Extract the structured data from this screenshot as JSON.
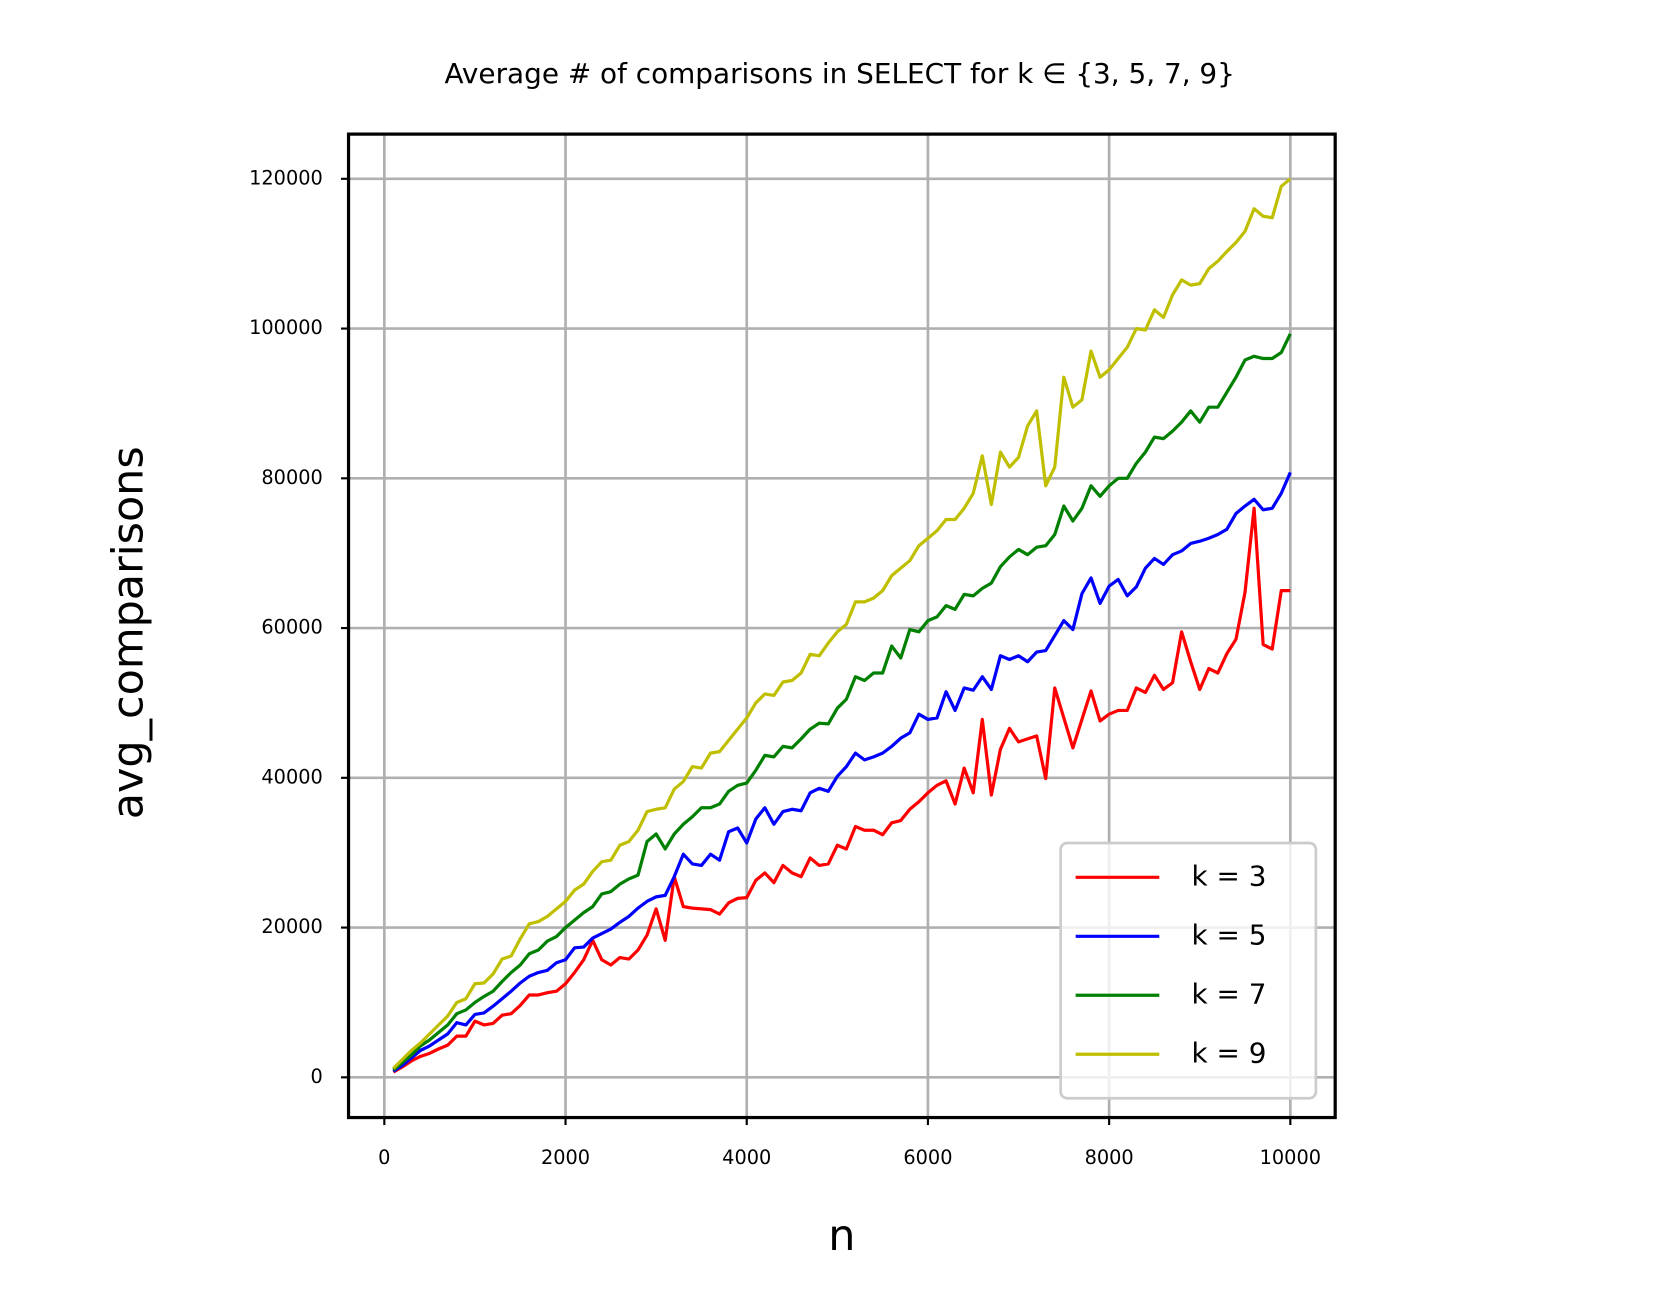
{
  "chart_data": {
    "type": "line",
    "title": "Average # of comparisons in SELECT for k ∈ {3, 5, 7, 9}",
    "x_label": "n",
    "y_label": "avg_comparisons",
    "x": [
      100,
      200,
      300,
      400,
      500,
      600,
      700,
      800,
      900,
      1000,
      1100,
      1200,
      1300,
      1400,
      1500,
      1600,
      1700,
      1800,
      1900,
      2000,
      2100,
      2200,
      2300,
      2400,
      2500,
      2600,
      2700,
      2800,
      2900,
      3000,
      3100,
      3200,
      3300,
      3400,
      3500,
      3600,
      3700,
      3800,
      3900,
      4000,
      4100,
      4200,
      4300,
      4400,
      4500,
      4600,
      4700,
      4800,
      4900,
      5000,
      5100,
      5200,
      5300,
      5400,
      5500,
      5600,
      5700,
      5800,
      5900,
      6000,
      6100,
      6200,
      6300,
      6400,
      6500,
      6600,
      6700,
      6800,
      6900,
      7000,
      7100,
      7200,
      7300,
      7400,
      7500,
      7600,
      7700,
      7800,
      7900,
      8000,
      8100,
      8200,
      8300,
      8400,
      8500,
      8600,
      8700,
      8800,
      8900,
      9000,
      9100,
      9200,
      9300,
      9400,
      9500,
      9600,
      9700,
      9800,
      9900,
      10000
    ],
    "series": [
      {
        "name": "k = 3",
        "color": "#ff0000",
        "values": [
          700,
          1400,
          2200,
          2800,
          3200,
          3800,
          4300,
          5500,
          5500,
          7500,
          7000,
          7200,
          8300,
          8500,
          9600,
          11000,
          11000,
          11300,
          11500,
          12500,
          14000,
          15700,
          18300,
          15700,
          15000,
          16000,
          15800,
          17000,
          19000,
          22500,
          18300,
          26800,
          22800,
          22600,
          22500,
          22400,
          21800,
          23300,
          23900,
          24000,
          26300,
          27300,
          26000,
          28300,
          27300,
          26800,
          29300,
          28300,
          28500,
          31000,
          30500,
          33500,
          33000,
          33000,
          32400,
          34000,
          34300,
          35800,
          36800,
          38000,
          39000,
          39600,
          36500,
          41300,
          38000,
          47800,
          37700,
          43800,
          46600,
          44800,
          45200,
          45600,
          39900,
          52000,
          48000,
          44000,
          47800,
          51600,
          47600,
          48500,
          49000,
          49000,
          52000,
          51400,
          53700,
          51800,
          52700,
          59500,
          55500,
          51800,
          54600,
          54000,
          56600,
          58500,
          64800,
          76000,
          57800,
          57200,
          65000,
          65000
        ]
      },
      {
        "name": "k = 5",
        "color": "#0000ff",
        "values": [
          800,
          1600,
          2600,
          3600,
          4200,
          5000,
          5800,
          7300,
          7000,
          8400,
          8600,
          9500,
          10500,
          11500,
          12600,
          13500,
          14000,
          14300,
          15300,
          15700,
          17300,
          17400,
          18600,
          19200,
          19800,
          20700,
          21500,
          22600,
          23500,
          24100,
          24300,
          26800,
          29800,
          28500,
          28300,
          29800,
          29000,
          32800,
          33300,
          31300,
          34500,
          36000,
          33800,
          35500,
          35800,
          35600,
          38000,
          38600,
          38200,
          40200,
          41500,
          43300,
          42400,
          42800,
          43300,
          44200,
          45300,
          46000,
          48500,
          47800,
          48000,
          51500,
          49000,
          52000,
          51700,
          53500,
          51800,
          56300,
          55800,
          56300,
          55500,
          56800,
          57000,
          59000,
          61000,
          59800,
          64600,
          66700,
          63300,
          65600,
          66500,
          64300,
          65500,
          68000,
          69300,
          68500,
          69800,
          70300,
          71300,
          71600,
          72000,
          72500,
          73200,
          75300,
          76300,
          77200,
          75800,
          76000,
          78000,
          80800
        ]
      },
      {
        "name": "k = 7",
        "color": "#008000",
        "values": [
          1000,
          2000,
          3000,
          4200,
          5000,
          6000,
          7000,
          8500,
          9000,
          10000,
          10800,
          11500,
          12800,
          14000,
          15000,
          16500,
          17000,
          18200,
          18800,
          20000,
          21000,
          22000,
          22800,
          24500,
          24800,
          25800,
          26500,
          27000,
          31500,
          32500,
          30500,
          32500,
          33800,
          34800,
          36000,
          36000,
          36500,
          38200,
          39000,
          39300,
          41000,
          43000,
          42800,
          44200,
          44000,
          45200,
          46500,
          47300,
          47200,
          49300,
          50500,
          53500,
          53000,
          54000,
          54000,
          57600,
          56000,
          59800,
          59500,
          61000,
          61500,
          63000,
          62500,
          64500,
          64300,
          65300,
          66000,
          68200,
          69500,
          70500,
          69800,
          70800,
          71000,
          72500,
          76300,
          74300,
          76000,
          79000,
          77600,
          79000,
          80000,
          80000,
          82000,
          83500,
          85500,
          85300,
          86300,
          87500,
          89000,
          87500,
          89500,
          89500,
          91500,
          93500,
          95800,
          96300,
          96000,
          96000,
          96800,
          99300
        ]
      },
      {
        "name": "k = 9",
        "color": "#bfbf00",
        "values": [
          1200,
          2400,
          3600,
          4600,
          5800,
          7000,
          8200,
          10000,
          10500,
          12500,
          12600,
          13800,
          15800,
          16200,
          18500,
          20500,
          20800,
          21500,
          22500,
          23500,
          25000,
          25800,
          27500,
          28800,
          29000,
          31000,
          31500,
          33000,
          35500,
          35800,
          36000,
          38500,
          39500,
          41500,
          41300,
          43300,
          43500,
          45000,
          46500,
          48000,
          50000,
          51200,
          51000,
          52800,
          53000,
          54000,
          56500,
          56300,
          58000,
          59500,
          60500,
          63500,
          63500,
          64000,
          65000,
          67000,
          68000,
          69000,
          71000,
          72000,
          73000,
          74500,
          74500,
          76000,
          78000,
          83000,
          76500,
          83500,
          81500,
          82800,
          87000,
          89000,
          79000,
          81500,
          93500,
          89500,
          90500,
          97000,
          93500,
          94500,
          96000,
          97500,
          100000,
          99800,
          102500,
          101500,
          104500,
          106500,
          105800,
          106000,
          108000,
          109000,
          110300,
          111500,
          113000,
          116000,
          115000,
          114800,
          119000,
          120000
        ]
      }
    ],
    "xlim": [
      -395,
      10495
    ],
    "ylim": [
      -5370,
      125970
    ],
    "xticks": [
      0,
      2000,
      4000,
      6000,
      8000,
      10000
    ],
    "yticks": [
      0,
      20000,
      40000,
      60000,
      80000,
      100000,
      120000
    ],
    "grid": true,
    "legend": "lower right"
  }
}
